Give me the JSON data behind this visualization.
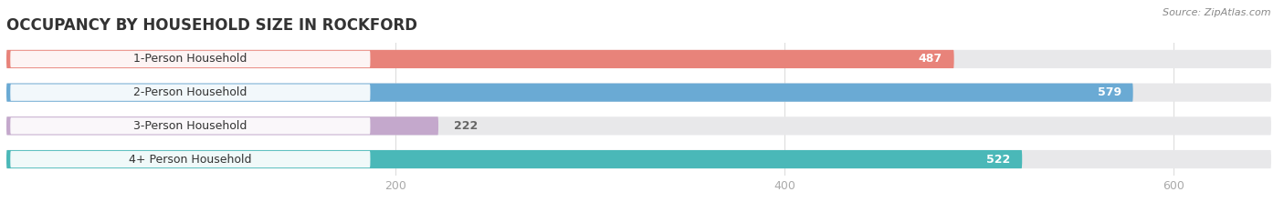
{
  "title": "OCCUPANCY BY HOUSEHOLD SIZE IN ROCKFORD",
  "source": "Source: ZipAtlas.com",
  "categories": [
    "1-Person Household",
    "2-Person Household",
    "3-Person Household",
    "4+ Person Household"
  ],
  "values": [
    487,
    579,
    222,
    522
  ],
  "bar_colors": [
    "#e8837a",
    "#6aaad4",
    "#c4a8cc",
    "#4ab8b8"
  ],
  "xlim_max": 650,
  "xticks": [
    200,
    400,
    600
  ],
  "bg_color": "#ffffff",
  "bar_bg_color": "#e8e8ea",
  "label_bg_color": "#ffffff",
  "title_color": "#333333",
  "source_color": "#888888",
  "label_text_color": "#333333",
  "value_text_color_inside": "#ffffff",
  "value_text_color_outside": "#666666",
  "tick_color": "#aaaaaa",
  "grid_color": "#dddddd",
  "title_fontsize": 12,
  "source_fontsize": 8,
  "label_fontsize": 9,
  "value_fontsize": 9,
  "tick_fontsize": 9
}
